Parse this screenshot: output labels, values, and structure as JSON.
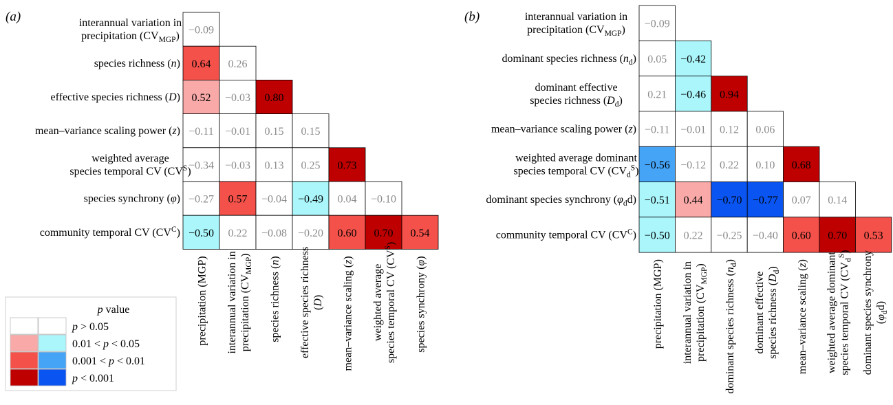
{
  "chart_data": [
    {
      "type": "heatmap",
      "panel_label": "(a)",
      "row_labels": [
        [
          "interannual variation in",
          "precipitation (CV_{MGP})"
        ],
        [
          "species richness (n)"
        ],
        [
          "effective species richness (D)"
        ],
        [
          "mean–variance scaling power (z)"
        ],
        [
          "weighted average",
          "species temporal CV (CV^S)"
        ],
        [
          "species synchrony (φ)"
        ],
        [
          "community temporal CV (CV^C)"
        ]
      ],
      "column_labels": [
        [
          "precipitation (MGP)"
        ],
        [
          "interannual variation in",
          "precipitation (CV_{MGP})"
        ],
        [
          "species richness (n)"
        ],
        [
          "effective species richness",
          "(D)"
        ],
        [
          "mean–variance scaling (z)"
        ],
        [
          "weighted average",
          "species temporal CV (CV^S)"
        ],
        [
          "species synchrony (φ)"
        ]
      ],
      "cells": [
        [
          {
            "v": -0.09,
            "t": "−0.09",
            "p": "ns"
          }
        ],
        [
          {
            "v": 0.64,
            "t": "0.64",
            "p": "0.001-0.01"
          },
          {
            "v": 0.26,
            "t": "0.26",
            "p": "ns"
          }
        ],
        [
          {
            "v": 0.52,
            "t": "0.52",
            "p": "0.01-0.05"
          },
          {
            "v": -0.03,
            "t": "−0.03",
            "p": "ns"
          },
          {
            "v": 0.8,
            "t": "0.80",
            "p": "<0.001"
          }
        ],
        [
          {
            "v": -0.11,
            "t": "−0.11",
            "p": "ns"
          },
          {
            "v": -0.01,
            "t": "−0.01",
            "p": "ns"
          },
          {
            "v": 0.15,
            "t": "0.15",
            "p": "ns"
          },
          {
            "v": 0.15,
            "t": "0.15",
            "p": "ns"
          }
        ],
        [
          {
            "v": -0.34,
            "t": "−0.34",
            "p": "ns"
          },
          {
            "v": -0.03,
            "t": "−0.03",
            "p": "ns"
          },
          {
            "v": 0.13,
            "t": "0.13",
            "p": "ns"
          },
          {
            "v": 0.25,
            "t": "0.25",
            "p": "ns"
          },
          {
            "v": 0.73,
            "t": "0.73",
            "p": "<0.001"
          }
        ],
        [
          {
            "v": -0.27,
            "t": "−0.27",
            "p": "ns"
          },
          {
            "v": 0.57,
            "t": "0.57",
            "p": "0.001-0.01"
          },
          {
            "v": -0.04,
            "t": "−0.04",
            "p": "ns"
          },
          {
            "v": -0.49,
            "t": "−0.49",
            "p": "0.01-0.05"
          },
          {
            "v": 0.04,
            "t": "0.04",
            "p": "ns"
          },
          {
            "v": -0.1,
            "t": "−0.10",
            "p": "ns"
          }
        ],
        [
          {
            "v": -0.5,
            "t": "−0.50",
            "p": "0.01-0.05"
          },
          {
            "v": 0.22,
            "t": "0.22",
            "p": "ns"
          },
          {
            "v": -0.08,
            "t": "−0.08",
            "p": "ns"
          },
          {
            "v": -0.2,
            "t": "−0.20",
            "p": "ns"
          },
          {
            "v": 0.6,
            "t": "0.60",
            "p": "0.001-0.01"
          },
          {
            "v": 0.7,
            "t": "0.70",
            "p": "<0.001"
          },
          {
            "v": 0.54,
            "t": "0.54",
            "p": "0.001-0.01"
          }
        ]
      ]
    },
    {
      "type": "heatmap",
      "panel_label": "(b)",
      "row_labels": [
        [
          "interannual variation in",
          "precipitation (CV_{MGP})"
        ],
        [
          "dominant species richness (n_d)"
        ],
        [
          "dominant effective",
          "species richness (D_d)"
        ],
        [
          "mean–variance scaling power (z)"
        ],
        [
          "weighted average dominant",
          "species temporal CV (CV_d^S)"
        ],
        [
          "dominant species synchrony (φ_dd)"
        ],
        [
          "community temporal CV (CV^C)"
        ]
      ],
      "column_labels": [
        [
          "precipitation (MGP)"
        ],
        [
          "interannual variation in",
          "precipitation (CV_{MGP})"
        ],
        [
          "dominant species richness (n_d)"
        ],
        [
          "dominant effective",
          "species richness (D_d)"
        ],
        [
          "mean–variance scaling (z)"
        ],
        [
          "weighted average dominant",
          "species temporal CV (CV_d^S)"
        ],
        [
          "dominant species synchrony",
          "(φ_dd)"
        ]
      ],
      "cells": [
        [
          {
            "v": -0.09,
            "t": "−0.09",
            "p": "ns"
          }
        ],
        [
          {
            "v": 0.05,
            "t": "0.05",
            "p": "ns"
          },
          {
            "v": -0.42,
            "t": "−0.42",
            "p": "0.01-0.05"
          }
        ],
        [
          {
            "v": 0.21,
            "t": "0.21",
            "p": "ns"
          },
          {
            "v": -0.46,
            "t": "−0.46",
            "p": "0.01-0.05"
          },
          {
            "v": 0.94,
            "t": "0.94",
            "p": "<0.001"
          }
        ],
        [
          {
            "v": -0.11,
            "t": "−0.11",
            "p": "ns"
          },
          {
            "v": -0.01,
            "t": "−0.01",
            "p": "ns"
          },
          {
            "v": 0.12,
            "t": "0.12",
            "p": "ns"
          },
          {
            "v": 0.06,
            "t": "0.06",
            "p": "ns"
          }
        ],
        [
          {
            "v": -0.56,
            "t": "−0.56",
            "p": "0.001-0.01"
          },
          {
            "v": -0.12,
            "t": "−0.12",
            "p": "ns"
          },
          {
            "v": 0.22,
            "t": "0.22",
            "p": "ns"
          },
          {
            "v": 0.1,
            "t": "0.10",
            "p": "ns"
          },
          {
            "v": 0.68,
            "t": "0.68",
            "p": "<0.001"
          }
        ],
        [
          {
            "v": -0.51,
            "t": "−0.51",
            "p": "0.01-0.05"
          },
          {
            "v": 0.44,
            "t": "0.44",
            "p": "0.01-0.05"
          },
          {
            "v": -0.7,
            "t": "−0.70",
            "p": "<0.001"
          },
          {
            "v": -0.77,
            "t": "−0.77",
            "p": "<0.001"
          },
          {
            "v": 0.07,
            "t": "0.07",
            "p": "ns"
          },
          {
            "v": 0.14,
            "t": "0.14",
            "p": "ns"
          }
        ],
        [
          {
            "v": -0.5,
            "t": "−0.50",
            "p": "0.01-0.05"
          },
          {
            "v": 0.22,
            "t": "0.22",
            "p": "ns"
          },
          {
            "v": -0.25,
            "t": "−0.25",
            "p": "ns"
          },
          {
            "v": -0.4,
            "t": "−0.40",
            "p": "ns"
          },
          {
            "v": 0.6,
            "t": "0.60",
            "p": "0.001-0.01"
          },
          {
            "v": 0.7,
            "t": "0.70",
            "p": "<0.001"
          },
          {
            "v": 0.53,
            "t": "0.53",
            "p": "0.001-0.01"
          }
        ]
      ]
    }
  ],
  "legend": {
    "title": "p value",
    "entries": [
      {
        "label": "p > 0.05",
        "level": "ns"
      },
      {
        "label": "0.01 < p < 0.05",
        "level": "0.01-0.05"
      },
      {
        "label": "0.001 < p < 0.01",
        "level": "0.001-0.01"
      },
      {
        "label": "p < 0.001",
        "level": "<0.001"
      }
    ]
  },
  "colors": {
    "positive": {
      "ns": "#ffffff",
      "0.01-0.05": "#f9aaa8",
      "0.001-0.01": "#f4514a",
      "<0.001": "#bf0000"
    },
    "negative": {
      "ns": "#ffffff",
      "0.01-0.05": "#aaf6fb",
      "0.001-0.01": "#45a4f6",
      "<0.001": "#0a55f2"
    },
    "nonsignificant_text": "#8a8a8a",
    "significant_text": "#000000"
  }
}
